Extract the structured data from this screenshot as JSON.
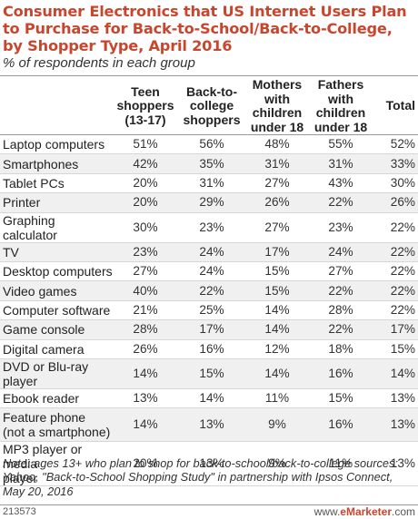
{
  "chart_data": {
    "type": "table",
    "title": "Consumer Electronics that US Internet Users Plan to Purchase for Back-to-School/Back-to-College, by Shopper Type, April 2016",
    "subtitle": "% of respondents in each group",
    "columns": [
      "Teen shoppers (13-17)",
      "Back-to-college shoppers",
      "Mothers with children under 18",
      "Fathers with children under 18",
      "Total"
    ],
    "rows": [
      {
        "label": "Laptop computers",
        "values": [
          "51%",
          "56%",
          "48%",
          "55%",
          "52%"
        ]
      },
      {
        "label": "Smartphones",
        "values": [
          "42%",
          "35%",
          "31%",
          "31%",
          "33%"
        ]
      },
      {
        "label": "Tablet PCs",
        "values": [
          "20%",
          "31%",
          "27%",
          "43%",
          "30%"
        ]
      },
      {
        "label": "Printer",
        "values": [
          "20%",
          "29%",
          "26%",
          "22%",
          "26%"
        ]
      },
      {
        "label": "Graphing calculator",
        "values": [
          "30%",
          "23%",
          "27%",
          "23%",
          "22%"
        ]
      },
      {
        "label": "TV",
        "values": [
          "23%",
          "24%",
          "17%",
          "24%",
          "22%"
        ]
      },
      {
        "label": "Desktop computers",
        "values": [
          "27%",
          "24%",
          "15%",
          "27%",
          "22%"
        ]
      },
      {
        "label": "Video games",
        "values": [
          "40%",
          "22%",
          "15%",
          "22%",
          "22%"
        ]
      },
      {
        "label": "Computer software",
        "values": [
          "21%",
          "25%",
          "14%",
          "28%",
          "22%"
        ]
      },
      {
        "label": "Game console",
        "values": [
          "28%",
          "17%",
          "14%",
          "22%",
          "17%"
        ]
      },
      {
        "label": "Digital camera",
        "values": [
          "26%",
          "16%",
          "12%",
          "18%",
          "15%"
        ]
      },
      {
        "label": "DVD or Blu-ray player",
        "values": [
          "14%",
          "15%",
          "14%",
          "16%",
          "14%"
        ]
      },
      {
        "label": "Ebook reader",
        "values": [
          "13%",
          "14%",
          "11%",
          "15%",
          "13%"
        ]
      },
      {
        "label": "Feature phone (not a smartphone)",
        "values": [
          "14%",
          "13%",
          "9%",
          "16%",
          "13%"
        ]
      },
      {
        "label": "MP3 player or media player",
        "values": [
          "20%",
          "13%",
          "9%",
          "11%",
          "13%"
        ]
      }
    ]
  },
  "header_lines": [
    [
      "Teen",
      "shoppers",
      "(13-17)"
    ],
    [
      "Back-to-",
      "college",
      "shoppers"
    ],
    [
      "Mothers",
      "with",
      "children",
      "under 18"
    ],
    [
      "Fathers",
      "with",
      "children",
      "under 18"
    ],
    [
      "Total"
    ]
  ],
  "row_label_lines": {
    "13": [
      "Feature phone",
      "(not a smartphone)"
    ],
    "14": [
      "MP3 player or media",
      "player"
    ]
  },
  "note": "Note: ages 13+ who plan to shop for back-to-school/back-to-college sources: Yahoo, \"Back-to-School Shopping Study\" in partnership with Ipsos Connect, May 20, 2016",
  "footer": {
    "chart_id": "213573",
    "brand_prefix": "www.",
    "brand_name": "eMarketer",
    "brand_suffix": ".com"
  },
  "colors": {
    "title": "#c8462e",
    "alt_row": "#f0f0f0",
    "brand_accent": "#c8462e"
  }
}
